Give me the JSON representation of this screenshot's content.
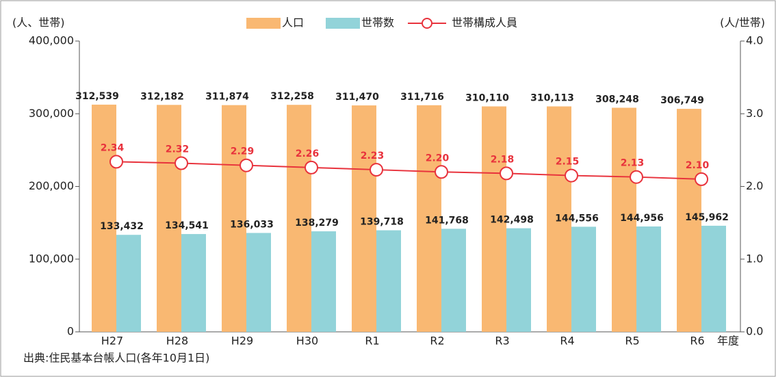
{
  "chart_data": {
    "type": "bar_line",
    "y_label": "(人、世帯)",
    "y2_label": "(人/世帯)",
    "x_label": "年度",
    "source": "出典:住民基本台帳人口(各年10月1日)",
    "categories": [
      "H27",
      "H28",
      "H29",
      "H30",
      "R1",
      "R2",
      "R3",
      "R4",
      "R5",
      "R6"
    ],
    "series": [
      {
        "name": "人口",
        "color": "#f9b872",
        "type": "bar",
        "values": [
          312539,
          312182,
          311874,
          312258,
          311470,
          311716,
          310110,
          310113,
          308248,
          306749
        ],
        "value_labels": [
          "312,539",
          "312,182",
          "311,874",
          "312,258",
          "311,470",
          "311,716",
          "310,110",
          "310,113",
          "308,248",
          "306,749"
        ]
      },
      {
        "name": "世帯数",
        "color": "#92d3d9",
        "type": "bar",
        "values": [
          133432,
          134541,
          136033,
          138279,
          139718,
          141768,
          142498,
          144556,
          144956,
          145962
        ],
        "value_labels": [
          "133,432",
          "134,541",
          "136,033",
          "138,279",
          "139,718",
          "141,768",
          "142,498",
          "144,556",
          "144,956",
          "145,962"
        ]
      },
      {
        "name": "世帯構成人員",
        "color": "#e8323c",
        "type": "line",
        "axis": "y2",
        "values": [
          2.34,
          2.32,
          2.29,
          2.26,
          2.23,
          2.2,
          2.18,
          2.15,
          2.13,
          2.1
        ],
        "value_labels": [
          "2.34",
          "2.32",
          "2.29",
          "2.26",
          "2.23",
          "2.20",
          "2.18",
          "2.15",
          "2.13",
          "2.10"
        ]
      }
    ],
    "ylim": [
      0,
      400000
    ],
    "yticks": [
      0,
      {
        "value": 100000,
        "label": "100,000"
      },
      {
        "value": 200000,
        "label": "200,000"
      },
      {
        "value": 300000,
        "label": "300,000"
      },
      {
        "value": 400000,
        "label": "400,000"
      }
    ],
    "y2lim": [
      0,
      4
    ],
    "y2ticks": [
      {
        "value": 0,
        "label": "0.0"
      },
      {
        "value": 1,
        "label": "1.0"
      },
      {
        "value": 2,
        "label": "2.0"
      },
      {
        "value": 3,
        "label": "3.0"
      },
      {
        "value": 4,
        "label": "4.0"
      }
    ],
    "grid": false,
    "legend": "top"
  }
}
